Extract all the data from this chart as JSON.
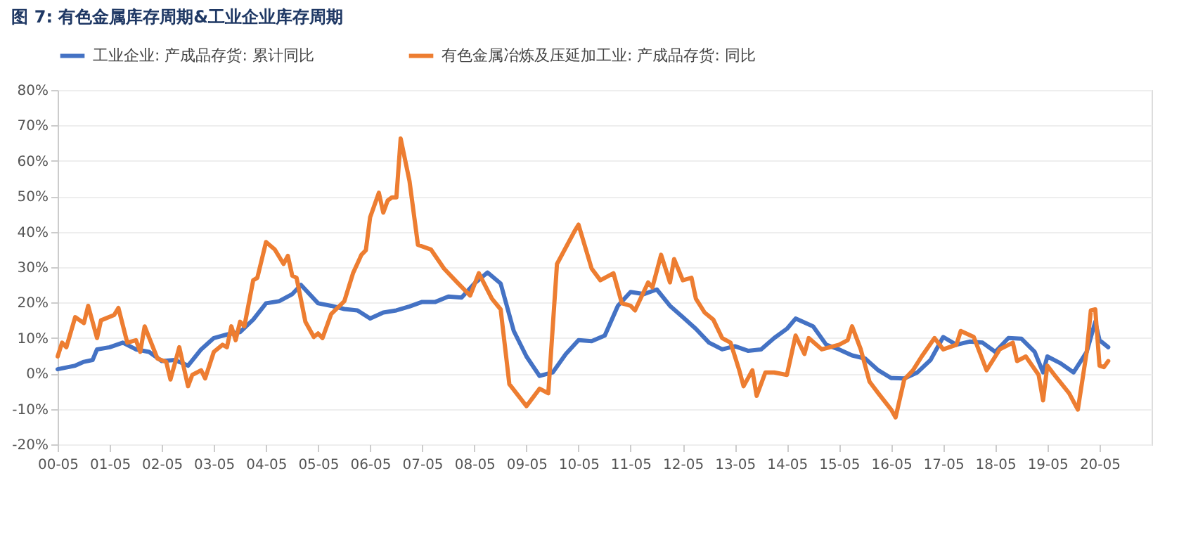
{
  "chart_data": {
    "type": "line",
    "title": "图 7: 有色金属库存周期&工业企业库存周期",
    "xlim": [
      "2000-05",
      "2021-05"
    ],
    "xticks": [
      {
        "value": "2000-05",
        "label": "00-05"
      },
      {
        "value": "2001-05",
        "label": "01-05"
      },
      {
        "value": "2002-05",
        "label": "02-05"
      },
      {
        "value": "2003-05",
        "label": "03-05"
      },
      {
        "value": "2004-05",
        "label": "04-05"
      },
      {
        "value": "2005-05",
        "label": "05-05"
      },
      {
        "value": "2006-05",
        "label": "06-05"
      },
      {
        "value": "2007-05",
        "label": "07-05"
      },
      {
        "value": "2008-05",
        "label": "08-05"
      },
      {
        "value": "2009-05",
        "label": "09-05"
      },
      {
        "value": "2010-05",
        "label": "10-05"
      },
      {
        "value": "2011-05",
        "label": "11-05"
      },
      {
        "value": "2012-05",
        "label": "12-05"
      },
      {
        "value": "2013-05",
        "label": "13-05"
      },
      {
        "value": "2014-05",
        "label": "14-05"
      },
      {
        "value": "2015-05",
        "label": "15-05"
      },
      {
        "value": "2016-05",
        "label": "16-05"
      },
      {
        "value": "2017-05",
        "label": "17-05"
      },
      {
        "value": "2018-05",
        "label": "18-05"
      },
      {
        "value": "2019-05",
        "label": "19-05"
      },
      {
        "value": "2020-05",
        "label": "20-05"
      }
    ],
    "ylim": [
      -20,
      80
    ],
    "yticks": [
      {
        "value": -20,
        "label": "-20%"
      },
      {
        "value": -10,
        "label": "-10%"
      },
      {
        "value": 0,
        "label": "0%"
      },
      {
        "value": 10,
        "label": "10%"
      },
      {
        "value": 20,
        "label": "20%"
      },
      {
        "value": 30,
        "label": "30%"
      },
      {
        "value": 40,
        "label": "40%"
      },
      {
        "value": 50,
        "label": "50%"
      },
      {
        "value": 60,
        "label": "60%"
      },
      {
        "value": 70,
        "label": "70%"
      },
      {
        "value": 80,
        "label": "80%"
      }
    ],
    "grid": "y",
    "legend": "top",
    "line_style": "solid",
    "marker": "none",
    "series": [
      {
        "name": "工业企业: 产成品存货: 累计同比",
        "color": "#4472c4",
        "x": [
          "2000-05",
          "2000-09",
          "2000-11",
          "2001-01",
          "2001-02",
          "2001-05",
          "2001-08",
          "2001-11",
          "2002-02",
          "2002-05",
          "2002-08",
          "2002-11",
          "2003-02",
          "2003-05",
          "2003-08",
          "2003-11",
          "2004-02",
          "2004-05",
          "2004-08",
          "2004-11",
          "2005-01",
          "2005-05",
          "2005-08",
          "2005-11",
          "2006-02",
          "2006-05",
          "2006-08",
          "2006-11",
          "2007-02",
          "2007-05",
          "2007-08",
          "2007-11",
          "2008-02",
          "2008-05",
          "2008-08",
          "2008-11",
          "2009-02",
          "2009-05",
          "2009-08",
          "2009-11",
          "2010-02",
          "2010-05",
          "2010-08",
          "2010-11",
          "2011-02",
          "2011-05",
          "2011-08",
          "2011-11",
          "2012-02",
          "2012-05",
          "2012-08",
          "2012-11",
          "2013-02",
          "2013-05",
          "2013-08",
          "2013-11",
          "2014-02",
          "2014-05",
          "2014-07",
          "2014-11",
          "2015-02",
          "2015-05",
          "2015-08",
          "2015-11",
          "2016-02",
          "2016-05",
          "2016-08",
          "2016-11",
          "2017-02",
          "2017-05",
          "2017-08",
          "2017-11",
          "2018-02",
          "2018-05",
          "2018-08",
          "2018-11",
          "2019-02",
          "2019-04",
          "2019-05",
          "2019-08",
          "2019-11",
          "2020-02",
          "2020-04",
          "2020-05",
          "2020-07"
        ],
        "values": [
          1.2,
          2.2,
          3.3,
          3.8,
          6.8,
          7.4,
          8.7,
          6.8,
          6.1,
          3.5,
          3.8,
          2.2,
          6.8,
          10,
          11,
          11.7,
          15.2,
          19.8,
          20.4,
          22.4,
          25,
          19.8,
          19.1,
          18.2,
          17.8,
          15.5,
          17.2,
          17.8,
          18.9,
          20.2,
          20.2,
          21.7,
          21.4,
          25.4,
          28.5,
          25.4,
          12,
          4.8,
          -0.7,
          0.3,
          5.5,
          9.4,
          9.1,
          10.7,
          19.1,
          23,
          22.4,
          23.7,
          19.1,
          15.9,
          12.6,
          8.7,
          6.8,
          7.7,
          6.4,
          6.8,
          10,
          12.6,
          15.5,
          13.3,
          8.1,
          6.8,
          5.1,
          4.2,
          0.9,
          -1.3,
          -1.4,
          0.3,
          3.8,
          10.3,
          8.1,
          9,
          8.7,
          6.1,
          10,
          9.8,
          6.1,
          0.3,
          4.8,
          2.9,
          0.3,
          6.1,
          14.6,
          9.4,
          7.4
        ]
      },
      {
        "name": "有色金属冶炼及压延加工业: 产成品存货: 同比",
        "color": "#ed7d31",
        "x": [
          "2000-05",
          "2000-06",
          "2000-07",
          "2000-09",
          "2000-11",
          "2000-12",
          "2001-02",
          "2001-03",
          "2001-06",
          "2001-07",
          "2001-09",
          "2001-11",
          "2001-12",
          "2002-01",
          "2002-04",
          "2002-06",
          "2002-07",
          "2002-09",
          "2002-11",
          "2002-12",
          "2003-02",
          "2003-03",
          "2003-05",
          "2003-07",
          "2003-08",
          "2003-09",
          "2003-10",
          "2003-11",
          "2003-12",
          "2004-02",
          "2004-03",
          "2004-05",
          "2004-07",
          "2004-09",
          "2004-10",
          "2004-11",
          "2004-12",
          "2005-02",
          "2005-04",
          "2005-05",
          "2005-06",
          "2005-08",
          "2005-11",
          "2006-01",
          "2006-03",
          "2006-04",
          "2006-05",
          "2006-07",
          "2006-08",
          "2006-09",
          "2006-10",
          "2006-11",
          "2006-12",
          "2007-02",
          "2007-04",
          "2007-07",
          "2007-10",
          "2008-01",
          "2008-04",
          "2008-06",
          "2008-09",
          "2008-11",
          "2009-01",
          "2009-05",
          "2009-08",
          "2009-10",
          "2009-12",
          "2010-04",
          "2010-05",
          "2010-08",
          "2010-10",
          "2011-01",
          "2011-03",
          "2011-05",
          "2011-06",
          "2011-09",
          "2011-10",
          "2011-12",
          "2012-02",
          "2012-03",
          "2012-05",
          "2012-07",
          "2012-08",
          "2012-10",
          "2012-12",
          "2013-02",
          "2013-04",
          "2013-06",
          "2013-07",
          "2013-09",
          "2013-10",
          "2013-12",
          "2014-02",
          "2014-05",
          "2014-07",
          "2014-09",
          "2014-10",
          "2015-01",
          "2015-05",
          "2015-07",
          "2015-08",
          "2015-10",
          "2015-12",
          "2016-02",
          "2016-05",
          "2016-06",
          "2016-08",
          "2016-10",
          "2016-12",
          "2017-03",
          "2017-05",
          "2017-08",
          "2017-09",
          "2017-12",
          "2018-03",
          "2018-06",
          "2018-09",
          "2018-10",
          "2018-12",
          "2019-03",
          "2019-04",
          "2019-05",
          "2019-07",
          "2019-10",
          "2019-12",
          "2020-02",
          "2020-03",
          "2020-04",
          "2020-05",
          "2020-06",
          "2020-07"
        ],
        "values": [
          4.8,
          8.7,
          7.4,
          15.9,
          14.2,
          19.1,
          10,
          15,
          16.5,
          18.5,
          8.7,
          9.4,
          6.1,
          13.3,
          4.2,
          3.3,
          -1.7,
          7.4,
          -3.6,
          -0.4,
          0.9,
          -1.4,
          6.1,
          8.1,
          7.4,
          13.3,
          9.4,
          14.6,
          13.3,
          26.3,
          27,
          37.1,
          35,
          30.9,
          33.2,
          27.6,
          27,
          14.6,
          10.3,
          11.3,
          10,
          16.8,
          20.4,
          28.3,
          33.5,
          34.8,
          44.1,
          51,
          45.4,
          48.8,
          49.7,
          49.7,
          66.3,
          54.3,
          36.3,
          35,
          29.6,
          25.7,
          22,
          28.3,
          21.1,
          18.1,
          -3,
          -9.2,
          -4.3,
          -5.6,
          30.9,
          40,
          42,
          29.6,
          26.3,
          28.3,
          19.8,
          19.1,
          17.8,
          25.7,
          24.3,
          33.5,
          25.7,
          32.3,
          26.3,
          27,
          21.1,
          17.2,
          15.2,
          10,
          8.7,
          0.9,
          -3.6,
          0.9,
          -6.3,
          0.3,
          0.3,
          -0.4,
          10.7,
          5.5,
          10,
          6.8,
          8.1,
          9.4,
          13.3,
          6.8,
          -2.3,
          -5.6,
          -10.2,
          -12.4,
          -1.7,
          0.9,
          4.8,
          10,
          6.8,
          8.1,
          12,
          10.3,
          0.9,
          6.8,
          8.7,
          3.5,
          4.8,
          -0.4,
          -7.6,
          2.2,
          -1,
          -5.6,
          -10.2,
          6.1,
          17.8,
          18.1,
          2.2,
          1.8,
          3.5
        ]
      }
    ]
  }
}
